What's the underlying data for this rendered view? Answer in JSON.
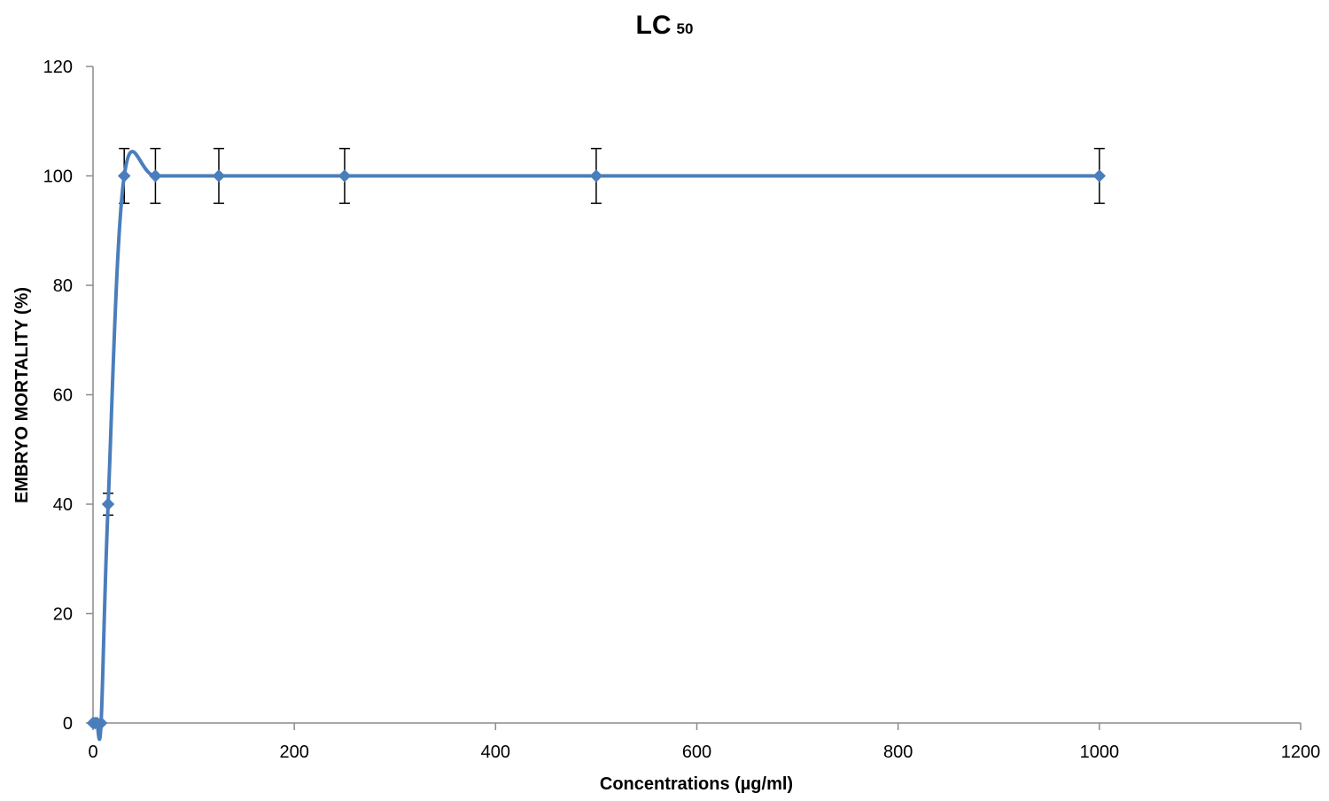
{
  "chart_data": {
    "type": "scatter",
    "title": "LC",
    "title_subscript": "50",
    "xlabel": "Concentrations (µg/ml)",
    "ylabel": "EMBRYO MORTALITY (%)",
    "xlim": [
      0,
      1200
    ],
    "ylim": [
      0,
      120
    ],
    "xticks": [
      0,
      200,
      400,
      600,
      800,
      1000,
      1200
    ],
    "yticks": [
      0,
      20,
      40,
      60,
      80,
      100,
      120
    ],
    "grid": false,
    "legend": "none",
    "smooth_line": true,
    "series": [
      {
        "x": [
          0,
          2,
          4,
          8,
          15,
          31,
          62,
          125,
          250,
          500,
          1000
        ],
        "y": [
          0,
          0,
          0,
          0,
          40,
          100,
          100,
          100,
          100,
          100,
          100
        ],
        "error": [
          0,
          0,
          0,
          0,
          2,
          5,
          5,
          5,
          5,
          5,
          5
        ],
        "color": "#4a7ebb"
      }
    ]
  }
}
